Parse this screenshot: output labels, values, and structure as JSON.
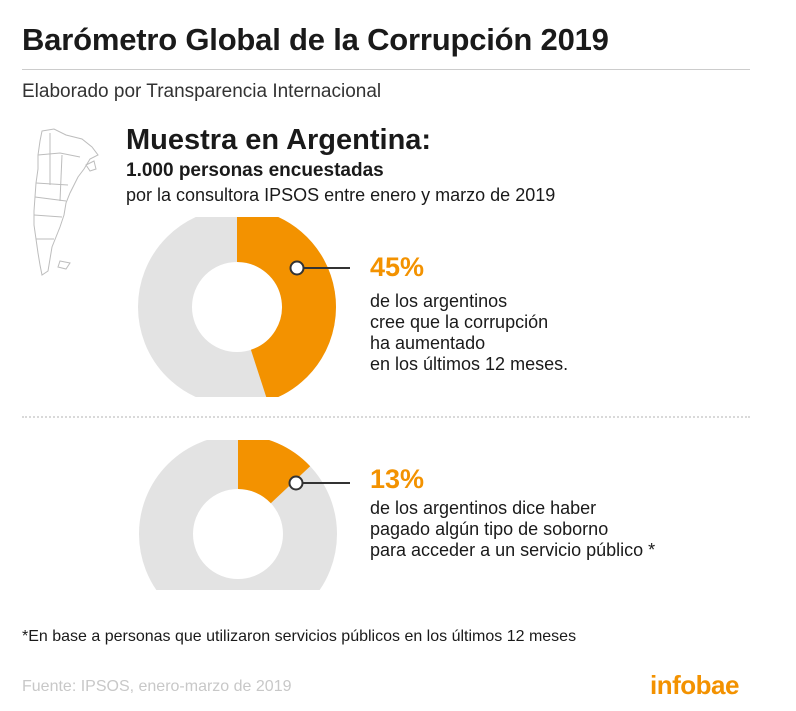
{
  "title": "Barómetro Global de la Corrupción 2019",
  "subtitle": "Elaborado por Transparencia Internacional",
  "sample": {
    "heading": "Muestra en Argentina:",
    "count": "1.000 personas encuestadas",
    "detail": "por la consultora IPSOS entre enero y marzo de 2019"
  },
  "colors": {
    "accent": "#f39200",
    "ring": "#e3e3e3",
    "source": "#c8c8c8"
  },
  "chart_data": [
    {
      "type": "pie",
      "value_pct": 45,
      "label": "45%",
      "description": [
        "de los argentinos",
        "cree que la corrupción",
        "ha aumentado",
        "en los últimos 12 meses."
      ]
    },
    {
      "type": "pie",
      "value_pct": 13,
      "label": "13%",
      "description": [
        "de los argentinos dice haber",
        "pagado algún tipo de soborno",
        "para acceder a un servicio público *"
      ]
    }
  ],
  "footnote": "*En base a personas que utilizaron servicios públicos en los últimos 12 meses",
  "source": "Fuente: IPSOS, enero-marzo de 2019",
  "logo_text": "infobae"
}
